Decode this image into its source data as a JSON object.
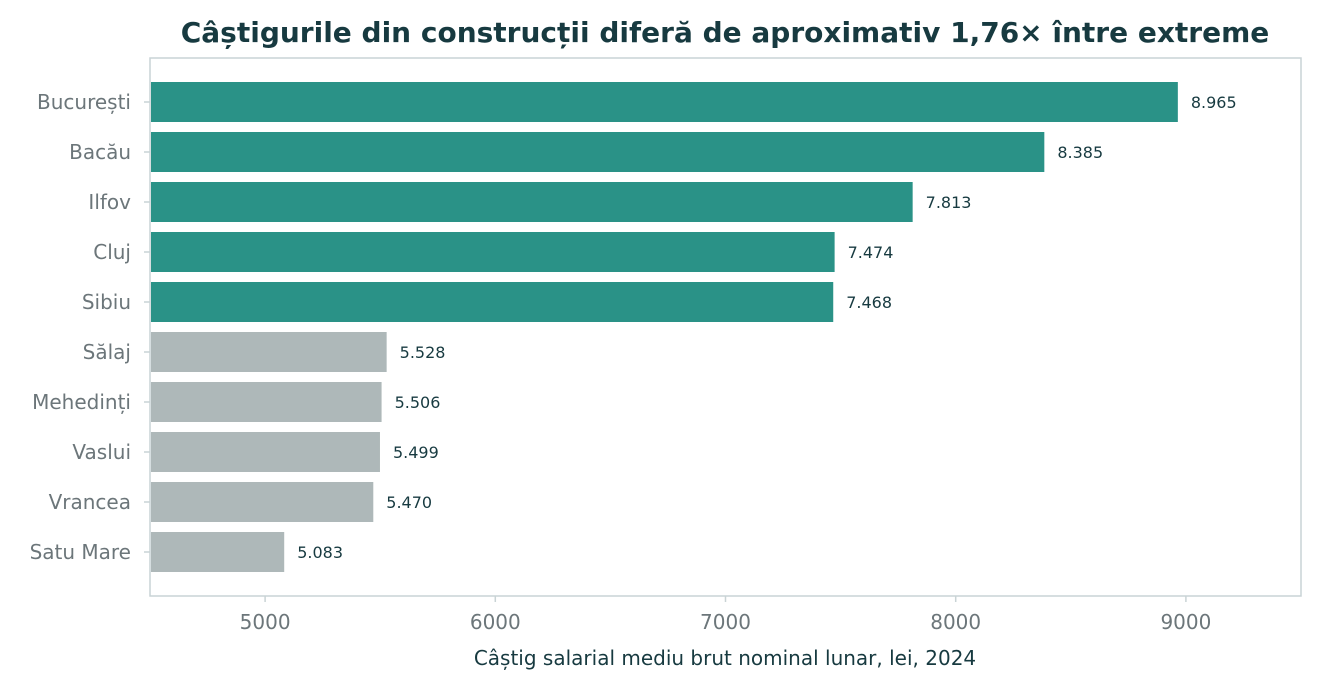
{
  "chart_data": {
    "type": "bar",
    "orientation": "horizontal",
    "title": "Câștigurile din construcții diferă de aproximativ 1,76× între extreme",
    "xlabel": "Câștig salarial mediu brut nominal lunar, lei, 2024",
    "ylabel": "",
    "xlim": [
      4500,
      9500
    ],
    "xticks": [
      5000,
      6000,
      7000,
      8000,
      9000
    ],
    "grid": false,
    "categories": [
      "București",
      "Bacău",
      "Ilfov",
      "Cluj",
      "Sibiu",
      "Sălaj",
      "Mehedinți",
      "Vaslui",
      "Vrancea",
      "Satu Mare"
    ],
    "values": [
      8965,
      8385,
      7813,
      7474,
      7468,
      5528,
      5506,
      5499,
      5470,
      5083
    ],
    "value_labels": [
      "8.965",
      "8.385",
      "7.813",
      "7.474",
      "7.468",
      "5.528",
      "5.506",
      "5.499",
      "5.470",
      "5.083"
    ],
    "bar_colors": [
      "#2a9287",
      "#2a9287",
      "#2a9287",
      "#2a9287",
      "#2a9287",
      "#aeb8b9",
      "#aeb8b9",
      "#aeb8b9",
      "#aeb8b9",
      "#aeb8b9"
    ],
    "colors": {
      "highlight": "#2a9287",
      "muted": "#aeb8b9",
      "frame": "#c9d3d5",
      "text_dark": "#173a40",
      "text_muted": "#6c767a"
    }
  }
}
